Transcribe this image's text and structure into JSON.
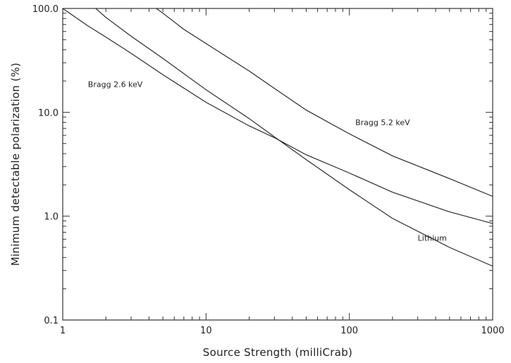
{
  "chart_data": {
    "type": "line",
    "xlabel": "Source Strength (milliCrab)",
    "ylabel": "Minimum detectable polarization (%)",
    "xscale": "log",
    "yscale": "log",
    "xlim": [
      1,
      1000
    ],
    "ylim": [
      0.1,
      100
    ],
    "grid": false,
    "legend": "none",
    "x_ticks": [
      {
        "value": 1,
        "label": "1"
      },
      {
        "value": 10,
        "label": "10"
      },
      {
        "value": 100,
        "label": "100"
      },
      {
        "value": 1000,
        "label": "1000"
      }
    ],
    "y_ticks": [
      {
        "value": 0.1,
        "label": "0.1"
      },
      {
        "value": 1,
        "label": "1.0"
      },
      {
        "value": 10,
        "label": "10.0"
      },
      {
        "value": 100,
        "label": "100.0"
      }
    ],
    "series": [
      {
        "name": "Lithium",
        "x": [
          1,
          1.5,
          2,
          3,
          5,
          10,
          20,
          30,
          50,
          100,
          200,
          500,
          1000
        ],
        "y": [
          100,
          68,
          53,
          37,
          23,
          12.5,
          7.4,
          5.7,
          3.9,
          2.6,
          1.7,
          1.1,
          0.85
        ]
      },
      {
        "name": "Bragg 2.6 keV",
        "x": [
          1.7,
          2,
          3,
          5,
          10,
          20,
          30,
          50,
          100,
          200,
          500,
          1000
        ],
        "y": [
          100,
          82,
          54,
          33,
          16.5,
          8.7,
          5.8,
          3.5,
          1.8,
          0.95,
          0.5,
          0.33
        ]
      },
      {
        "name": "Bragg 5.2 keV",
        "x": [
          4.5,
          5,
          7,
          10,
          20,
          30,
          50,
          100,
          200,
          500,
          1000
        ],
        "y": [
          100,
          90,
          63,
          46,
          25,
          17,
          10.5,
          6.2,
          3.8,
          2.3,
          1.55
        ]
      }
    ],
    "annotations": [
      {
        "text": "Bragg 2.6 keV",
        "x": 1.5,
        "y": 17.5
      },
      {
        "text": "Bragg 5.2 keV",
        "x": 110,
        "y": 7.5
      },
      {
        "text": "Lithium",
        "x": 300,
        "y": 0.58
      }
    ]
  }
}
